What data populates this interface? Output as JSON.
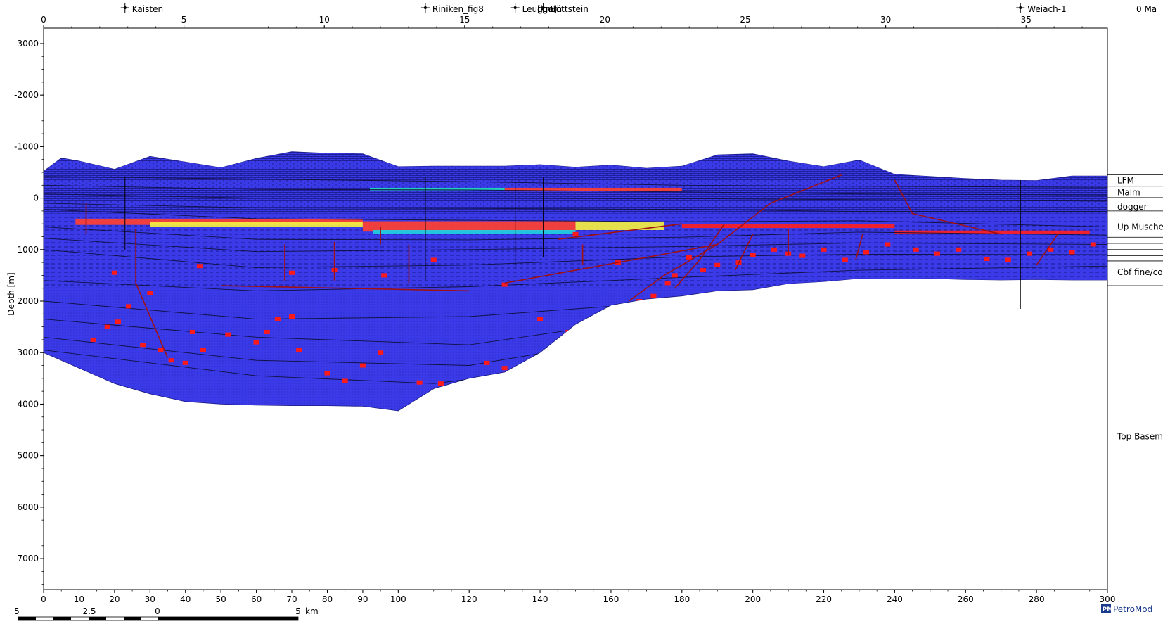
{
  "chart_data": {
    "type": "cross-section",
    "time_label": "0 Ma",
    "ylabel": "Depth [m]",
    "xlabel_top": "[km]",
    "ylim": [
      7600,
      -3300
    ],
    "y_ticks": [
      -3000,
      -2000,
      -1000,
      0,
      1000,
      2000,
      3000,
      4000,
      5000,
      6000,
      7000
    ],
    "x_top_ticks_km": [
      0,
      5,
      10,
      15,
      20,
      25,
      30,
      35
    ],
    "x_top_range_km": [
      0,
      37.9
    ],
    "x_bottom_ticks": [
      0,
      10,
      20,
      30,
      40,
      50,
      60,
      70,
      80,
      90,
      100,
      120,
      140,
      160,
      180,
      200,
      220,
      240,
      260,
      280,
      300
    ],
    "x_bottom_range": [
      0,
      300
    ],
    "wells": [
      {
        "name": "Kaisten",
        "x_km": 2.9
      },
      {
        "name": "Riniken_fig8",
        "x_km": 13.6
      },
      {
        "name": "Leuggern",
        "x_km": 16.8
      },
      {
        "name": "Böttstein",
        "x_km": 17.8
      },
      {
        "name": "Weiach-1",
        "x_km": 34.8
      }
    ],
    "layer_labels": [
      {
        "name": "LFM",
        "depth_m": -340
      },
      {
        "name": "Malm",
        "depth_m": -110
      },
      {
        "name": "dogger",
        "depth_m": 170
      },
      {
        "name": "Up Muschelk",
        "depth_m": 560
      },
      {
        "name": "Cbf fine/coa",
        "depth_m": 1440
      },
      {
        "name": "Top Baseme",
        "depth_m": 4630
      }
    ],
    "model_top_m": [
      [
        0,
        -520
      ],
      [
        5,
        -780
      ],
      [
        10,
        -720
      ],
      [
        20,
        -560
      ],
      [
        30,
        -810
      ],
      [
        40,
        -700
      ],
      [
        50,
        -590
      ],
      [
        60,
        -770
      ],
      [
        70,
        -900
      ],
      [
        80,
        -870
      ],
      [
        90,
        -860
      ],
      [
        100,
        -610
      ],
      [
        110,
        -620
      ],
      [
        120,
        -620
      ],
      [
        130,
        -620
      ],
      [
        140,
        -650
      ],
      [
        150,
        -600
      ],
      [
        160,
        -640
      ],
      [
        170,
        -580
      ],
      [
        180,
        -620
      ],
      [
        190,
        -840
      ],
      [
        200,
        -860
      ],
      [
        210,
        -720
      ],
      [
        220,
        -610
      ],
      [
        230,
        -740
      ],
      [
        240,
        -460
      ],
      [
        250,
        -420
      ],
      [
        260,
        -380
      ],
      [
        270,
        -350
      ],
      [
        280,
        -340
      ],
      [
        290,
        -430
      ],
      [
        300,
        -430
      ]
    ],
    "model_base_m": [
      [
        0,
        3000
      ],
      [
        10,
        3300
      ],
      [
        20,
        3600
      ],
      [
        30,
        3800
      ],
      [
        40,
        3950
      ],
      [
        50,
        4000
      ],
      [
        60,
        4020
      ],
      [
        70,
        4030
      ],
      [
        80,
        4030
      ],
      [
        90,
        4040
      ],
      [
        100,
        4130
      ],
      [
        110,
        3700
      ],
      [
        120,
        3500
      ],
      [
        130,
        3380
      ],
      [
        140,
        3000
      ],
      [
        150,
        2450
      ],
      [
        160,
        2080
      ],
      [
        170,
        1960
      ],
      [
        180,
        1900
      ],
      [
        190,
        1800
      ],
      [
        200,
        1780
      ],
      [
        210,
        1660
      ],
      [
        220,
        1620
      ],
      [
        230,
        1560
      ],
      [
        240,
        1570
      ],
      [
        250,
        1560
      ],
      [
        260,
        1580
      ],
      [
        270,
        1590
      ],
      [
        280,
        1580
      ],
      [
        290,
        1590
      ],
      [
        300,
        1590
      ]
    ],
    "horizons_m": [
      [
        [
          0,
          -420
        ],
        [
          60,
          -370
        ],
        [
          120,
          -320
        ],
        [
          180,
          -250
        ],
        [
          230,
          -230
        ],
        [
          300,
          -210
        ]
      ],
      [
        [
          0,
          -250
        ],
        [
          60,
          -170
        ],
        [
          120,
          -160
        ],
        [
          180,
          -120
        ],
        [
          230,
          -80
        ],
        [
          300,
          -60
        ]
      ],
      [
        [
          0,
          -80
        ],
        [
          60,
          0
        ],
        [
          120,
          0
        ],
        [
          180,
          10
        ],
        [
          230,
          30
        ],
        [
          300,
          60
        ]
      ],
      [
        [
          0,
          100
        ],
        [
          60,
          190
        ],
        [
          120,
          200
        ],
        [
          180,
          220
        ],
        [
          230,
          260
        ],
        [
          300,
          260
        ]
      ],
      [
        [
          0,
          220
        ],
        [
          60,
          400
        ],
        [
          120,
          430
        ],
        [
          180,
          460
        ],
        [
          230,
          440
        ],
        [
          300,
          560
        ]
      ],
      [
        [
          0,
          560
        ],
        [
          60,
          800
        ],
        [
          120,
          810
        ],
        [
          180,
          760
        ],
        [
          230,
          660
        ],
        [
          300,
          720
        ]
      ],
      [
        [
          0,
          780
        ],
        [
          60,
          1040
        ],
        [
          120,
          1000
        ],
        [
          180,
          940
        ],
        [
          230,
          870
        ],
        [
          300,
          900
        ]
      ],
      [
        [
          0,
          1000
        ],
        [
          60,
          1350
        ],
        [
          120,
          1300
        ],
        [
          180,
          1140
        ],
        [
          230,
          1090
        ],
        [
          300,
          1100
        ]
      ],
      [
        [
          0,
          1600
        ],
        [
          60,
          1800
        ],
        [
          120,
          1720
        ],
        [
          180,
          1540
        ],
        [
          230,
          1400
        ],
        [
          300,
          1320
        ]
      ],
      [
        [
          0,
          2000
        ],
        [
          60,
          2350
        ],
        [
          120,
          2300
        ],
        [
          170,
          2050
        ]
      ],
      [
        [
          0,
          2350
        ],
        [
          60,
          2700
        ],
        [
          120,
          2850
        ],
        [
          160,
          2450
        ]
      ],
      [
        [
          0,
          2700
        ],
        [
          60,
          3150
        ],
        [
          120,
          3250
        ],
        [
          150,
          2900
        ]
      ],
      [
        [
          0,
          2950
        ],
        [
          60,
          3450
        ],
        [
          110,
          3600
        ],
        [
          140,
          3350
        ]
      ]
    ],
    "hc_bands_m": [
      {
        "x0": 9,
        "x1": 90,
        "top": 400,
        "bot": 520,
        "color": "#ff4030"
      },
      {
        "x0": 30,
        "x1": 90,
        "top": 460,
        "bot": 560,
        "color": "#f4f040"
      },
      {
        "x0": 90,
        "x1": 150,
        "top": 450,
        "bot": 650,
        "color": "#ff4030"
      },
      {
        "x0": 150,
        "x1": 175,
        "top": 450,
        "bot": 620,
        "color": "#f4f040"
      },
      {
        "x0": 93,
        "x1": 150,
        "top": 620,
        "bot": 700,
        "color": "#20d0e0"
      },
      {
        "x0": 130,
        "x1": 180,
        "top": -200,
        "bot": -130,
        "color": "#ff4030"
      },
      {
        "x0": 92,
        "x1": 130,
        "top": -200,
        "bot": -150,
        "color": "#20e0c0"
      },
      {
        "x0": 180,
        "x1": 240,
        "top": 500,
        "bot": 580,
        "color": "#ff2020"
      },
      {
        "x0": 240,
        "x1": 295,
        "top": 630,
        "bot": 700,
        "color": "#ff2020"
      }
    ]
  },
  "brand": {
    "logo_mark": "PM",
    "name": "PetroMod"
  },
  "scale_bar": {
    "labels": [
      "5",
      "2.5",
      "0",
      "5"
    ],
    "unit": "km"
  },
  "colors": {
    "model_fill": "#3a3ae8",
    "model_dark": "#2a2ab0",
    "hc_red": "#ff2020",
    "fault": "#a01010",
    "logo_blue": "#1a3a8c"
  }
}
